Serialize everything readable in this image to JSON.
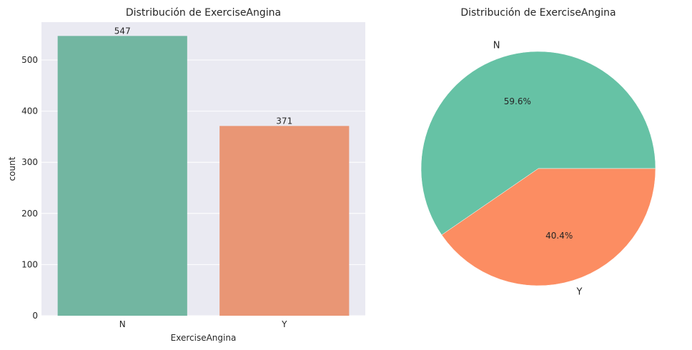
{
  "chart_data": [
    {
      "type": "bar",
      "title": "Distribución de ExerciseAngina",
      "xlabel": "ExerciseAngina",
      "ylabel": "count",
      "categories": [
        "N",
        "Y"
      ],
      "values": [
        547,
        371
      ],
      "bar_labels": [
        "547",
        "371"
      ],
      "yticks": [
        0,
        100,
        200,
        300,
        400,
        500
      ],
      "ylim": [
        0,
        574
      ],
      "grid": true,
      "colors": [
        "#72b6a1",
        "#e99675"
      ],
      "background": "#eaeaf2"
    },
    {
      "type": "pie",
      "title": "Distribución de ExerciseAngina",
      "labels": [
        "N",
        "Y"
      ],
      "values": [
        547,
        371
      ],
      "percent_labels": [
        "59.6%",
        "40.4%"
      ],
      "colors": [
        "#66c2a5",
        "#fc8d62"
      ]
    }
  ]
}
